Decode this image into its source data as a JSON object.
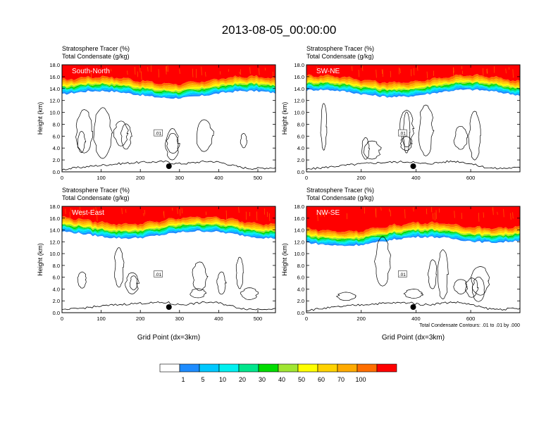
{
  "title": "2013-08-05_00:00:00",
  "chart_data": {
    "type": "heatmap",
    "colorbar": {
      "labels": [
        "1",
        "5",
        "10",
        "20",
        "30",
        "40",
        "50",
        "60",
        "70",
        "100"
      ],
      "colors": [
        "#ffffff",
        "#1e8cff",
        "#00c8ff",
        "#00f0f0",
        "#00e68c",
        "#00dc00",
        "#a0e632",
        "#ffff00",
        "#ffd200",
        "#ffaa00",
        "#ff6e00",
        "#ff0000"
      ]
    },
    "contour_info": "Total Condensate Contours: .01 to .01 by .000",
    "contour_label": ".01",
    "panels": [
      {
        "label": "South-North",
        "title1": "Stratosphere Tracer   (%)",
        "title2": "Total Condensate   (g/kg)",
        "xmax": 545,
        "xticks": [
          "0",
          "100",
          "200",
          "300",
          "400",
          "500"
        ],
        "xtick_values": [
          0,
          100,
          200,
          300,
          400,
          500
        ],
        "marker_x": 273,
        "ylabel": "Height (km)",
        "yticks": [
          "0.0",
          "2.0",
          "4.0",
          "6.0",
          "8.0",
          "10.0",
          "12.0",
          "14.0",
          "16.0",
          "18.0"
        ],
        "ylim": [
          0,
          18
        ],
        "tracer_base_km": 13.0,
        "xlabel": ""
      },
      {
        "label": "SW-NE",
        "title1": "Stratosphere Tracer   (%)",
        "title2": "Total Condensate   (g/kg)",
        "xmax": 780,
        "xticks": [
          "0",
          "200",
          "400",
          "600"
        ],
        "xtick_values": [
          0,
          200,
          400,
          600
        ],
        "marker_x": 390,
        "ylabel": "Height (km)",
        "yticks": [
          "0.0",
          "2.0",
          "4.0",
          "6.0",
          "8.0",
          "10.0",
          "12.0",
          "14.0",
          "16.0",
          "18.0"
        ],
        "ylim": [
          0,
          18
        ],
        "tracer_base_km": 13.2,
        "xlabel": ""
      },
      {
        "label": "West-East",
        "title1": "Stratosphere Tracer   (%)",
        "title2": "Total Condensate   (g/kg)",
        "xmax": 545,
        "xticks": [
          "0",
          "100",
          "200",
          "300",
          "400",
          "500"
        ],
        "xtick_values": [
          0,
          100,
          200,
          300,
          400,
          500
        ],
        "marker_x": 273,
        "ylabel": "Height (km)",
        "yticks": [
          "0.0",
          "2.0",
          "4.0",
          "6.0",
          "8.0",
          "10.0",
          "12.0",
          "14.0",
          "16.0",
          "18.0"
        ],
        "ylim": [
          0,
          18
        ],
        "tracer_base_km": 13.2,
        "xlabel": "Grid Point (dx=3km)"
      },
      {
        "label": "NW-SE",
        "title1": "Stratosphere Tracer   (%)",
        "title2": "Total Condensate   (g/kg)",
        "xmax": 780,
        "xticks": [
          "0",
          "200",
          "400",
          "600"
        ],
        "xtick_values": [
          0,
          200,
          400,
          600
        ],
        "marker_x": 390,
        "ylabel": "Height (km)",
        "yticks": [
          "0.0",
          "2.0",
          "4.0",
          "6.0",
          "8.0",
          "10.0",
          "12.0",
          "14.0",
          "16.0",
          "18.0"
        ],
        "ylim": [
          0,
          18
        ],
        "tracer_base_km": 12.6,
        "xlabel": "Grid Point (dx=3km)"
      }
    ]
  }
}
